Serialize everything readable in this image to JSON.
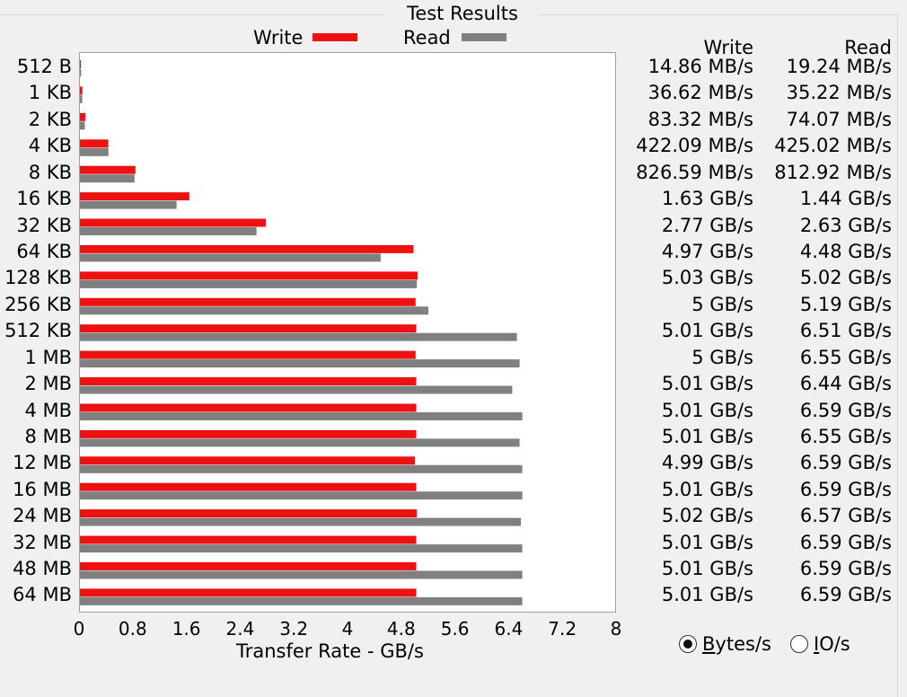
{
  "panel": {
    "title": "Test Results"
  },
  "legend": [
    {
      "label": "Write",
      "color": "#ee1111"
    },
    {
      "label": "Read",
      "color": "#808080"
    }
  ],
  "table": {
    "headers": {
      "write": "Write",
      "read": "Read"
    },
    "rows": [
      {
        "size": "512 B",
        "write": "14.86 MB/s",
        "read": "19.24 MB/s"
      },
      {
        "size": "1 KB",
        "write": "36.62 MB/s",
        "read": "35.22 MB/s"
      },
      {
        "size": "2 KB",
        "write": "83.32 MB/s",
        "read": "74.07 MB/s"
      },
      {
        "size": "4 KB",
        "write": "422.09 MB/s",
        "read": "425.02 MB/s"
      },
      {
        "size": "8 KB",
        "write": "826.59 MB/s",
        "read": "812.92 MB/s"
      },
      {
        "size": "16 KB",
        "write": "1.63 GB/s",
        "read": "1.44 GB/s"
      },
      {
        "size": "32 KB",
        "write": "2.77 GB/s",
        "read": "2.63 GB/s"
      },
      {
        "size": "64 KB",
        "write": "4.97 GB/s",
        "read": "4.48 GB/s"
      },
      {
        "size": "128 KB",
        "write": "5.03 GB/s",
        "read": "5.02 GB/s"
      },
      {
        "size": "256 KB",
        "write": "5 GB/s",
        "read": "5.19 GB/s"
      },
      {
        "size": "512 KB",
        "write": "5.01 GB/s",
        "read": "6.51 GB/s"
      },
      {
        "size": "1 MB",
        "write": "5 GB/s",
        "read": "6.55 GB/s"
      },
      {
        "size": "2 MB",
        "write": "5.01 GB/s",
        "read": "6.44 GB/s"
      },
      {
        "size": "4 MB",
        "write": "5.01 GB/s",
        "read": "6.59 GB/s"
      },
      {
        "size": "8 MB",
        "write": "5.01 GB/s",
        "read": "6.55 GB/s"
      },
      {
        "size": "12 MB",
        "write": "4.99 GB/s",
        "read": "6.59 GB/s"
      },
      {
        "size": "16 MB",
        "write": "5.01 GB/s",
        "read": "6.59 GB/s"
      },
      {
        "size": "24 MB",
        "write": "5.02 GB/s",
        "read": "6.57 GB/s"
      },
      {
        "size": "32 MB",
        "write": "5.01 GB/s",
        "read": "6.59 GB/s"
      },
      {
        "size": "48 MB",
        "write": "5.01 GB/s",
        "read": "6.59 GB/s"
      },
      {
        "size": "64 MB",
        "write": "5.01 GB/s",
        "read": "6.59 GB/s"
      }
    ]
  },
  "units": {
    "bytes": {
      "label": "Bytes/s",
      "underline": "B",
      "rest": "ytes/s",
      "selected": true
    },
    "io": {
      "label": "IO/s",
      "underline": "I",
      "rest": "O/s",
      "selected": false
    }
  },
  "chart_data": {
    "type": "bar",
    "orientation": "horizontal",
    "title": "Test Results",
    "xlabel": "Transfer Rate - GB/s",
    "ylabel": "",
    "xlim": [
      0,
      8
    ],
    "xticks": [
      "0",
      "0.8",
      "1.6",
      "2.4",
      "3.2",
      "4",
      "4.8",
      "5.6",
      "6.4",
      "7.2",
      "8"
    ],
    "grid": false,
    "legend_position": "top",
    "categories": [
      "512 B",
      "1 KB",
      "2 KB",
      "4 KB",
      "8 KB",
      "16 KB",
      "32 KB",
      "64 KB",
      "128 KB",
      "256 KB",
      "512 KB",
      "1 MB",
      "2 MB",
      "4 MB",
      "8 MB",
      "12 MB",
      "16 MB",
      "24 MB",
      "32 MB",
      "48 MB",
      "64 MB"
    ],
    "series": [
      {
        "name": "Write",
        "color": "#ee1111",
        "values": [
          0.01486,
          0.03662,
          0.08332,
          0.42209,
          0.82659,
          1.63,
          2.77,
          4.97,
          5.03,
          5.0,
          5.01,
          5.0,
          5.01,
          5.01,
          5.01,
          4.99,
          5.01,
          5.02,
          5.01,
          5.01,
          5.01
        ]
      },
      {
        "name": "Read",
        "color": "#808080",
        "values": [
          0.01924,
          0.03522,
          0.07407,
          0.42502,
          0.81292,
          1.44,
          2.63,
          4.48,
          5.02,
          5.19,
          6.51,
          6.55,
          6.44,
          6.59,
          6.55,
          6.59,
          6.59,
          6.57,
          6.59,
          6.59,
          6.59
        ]
      }
    ]
  }
}
